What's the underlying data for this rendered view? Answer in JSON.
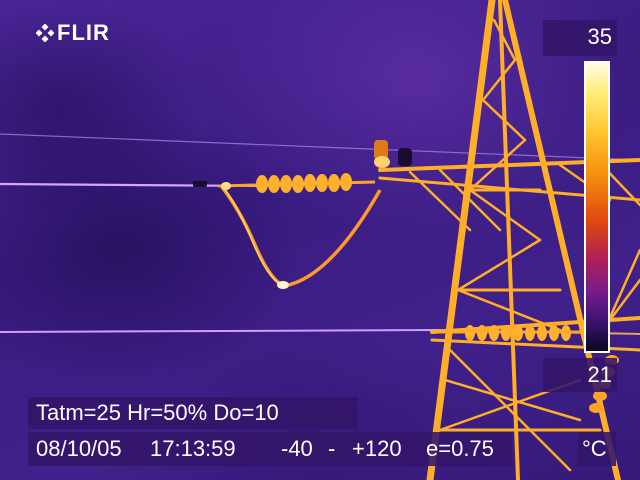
{
  "logo": {
    "text": "FLIR",
    "icon": "flir-diamond-icon"
  },
  "scale": {
    "max": "35",
    "min": "21",
    "unit": "°C"
  },
  "parameters": {
    "tatm": "Tatm=25",
    "hr": "Hr=50%",
    "do": "Do=10"
  },
  "status": {
    "date": "08/10/05",
    "time": "17:13:59",
    "range_low": "-40",
    "range_sep": "-",
    "range_high": "+120",
    "emissivity": "e=0.75"
  },
  "colors": {
    "background": "#3c1d7e",
    "hot": "#ffb020",
    "hottest": "#fff6c8",
    "panel": "#321669"
  }
}
